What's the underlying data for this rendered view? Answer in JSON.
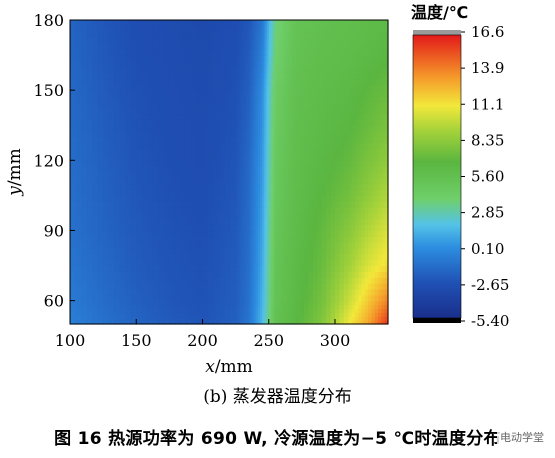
{
  "chart_data": {
    "type": "heatmap",
    "title": "",
    "xlabel_italic": "x",
    "xlabel_unit": "/mm",
    "ylabel_italic": "y",
    "ylabel_unit": "/mm",
    "xlim": [
      100,
      340
    ],
    "ylim": [
      50,
      180
    ],
    "x_ticks": [
      100,
      150,
      200,
      250,
      300
    ],
    "y_ticks": [
      60,
      90,
      120,
      150,
      180
    ],
    "colorbar": {
      "title": "温度/℃",
      "min": -5.4,
      "max": 16.6,
      "ticks": [
        "16.6",
        "13.9",
        "11.1",
        "8.35",
        "5.60",
        "2.85",
        "0.10",
        "-2.65",
        "-5.40"
      ]
    },
    "x": [
      100,
      125,
      150,
      175,
      200,
      225,
      235,
      245,
      255,
      270,
      290,
      310,
      325,
      340
    ],
    "y": [
      50,
      60,
      75,
      90,
      105,
      120,
      135,
      150,
      165,
      180
    ],
    "values": [
      [
        -0.5,
        -1.2,
        -1.8,
        -2.2,
        -2.5,
        -2.0,
        -1.0,
        1.5,
        5.5,
        6.5,
        8.0,
        11.0,
        13.0,
        16.0
      ],
      [
        -0.8,
        -1.4,
        -2.0,
        -2.4,
        -2.6,
        -2.1,
        -1.2,
        1.2,
        5.3,
        6.3,
        7.6,
        10.0,
        12.0,
        14.0
      ],
      [
        -1.0,
        -1.6,
        -2.2,
        -2.5,
        -2.7,
        -2.2,
        -1.3,
        1.0,
        5.2,
        6.2,
        7.2,
        9.0,
        10.5,
        11.5
      ],
      [
        -1.2,
        -1.8,
        -2.3,
        -2.6,
        -2.8,
        -2.3,
        -1.4,
        0.8,
        5.0,
        6.0,
        7.0,
        8.2,
        9.5,
        10.5
      ],
      [
        -1.3,
        -1.9,
        -2.4,
        -2.7,
        -2.9,
        -2.4,
        -1.5,
        0.6,
        4.8,
        5.9,
        6.7,
        7.5,
        8.5,
        9.5
      ],
      [
        -1.4,
        -2.0,
        -2.5,
        -2.8,
        -3.0,
        -2.5,
        -1.6,
        0.4,
        4.7,
        5.8,
        6.4,
        7.0,
        7.8,
        8.5
      ],
      [
        -1.5,
        -2.1,
        -2.6,
        -2.9,
        -3.0,
        -2.6,
        -1.8,
        0.2,
        4.5,
        5.7,
        6.2,
        6.6,
        7.2,
        7.8
      ],
      [
        -1.6,
        -2.2,
        -2.7,
        -2.9,
        -3.1,
        -2.7,
        -2.0,
        0.0,
        4.3,
        5.6,
        6.0,
        6.3,
        6.8,
        7.2
      ],
      [
        -1.7,
        -2.3,
        -2.8,
        -3.0,
        -3.1,
        -2.8,
        -2.2,
        -0.5,
        3.8,
        5.4,
        5.8,
        6.0,
        6.3,
        6.6
      ],
      [
        -1.8,
        -2.4,
        -2.9,
        -3.0,
        -3.2,
        -2.9,
        -2.4,
        -1.0,
        3.5,
        5.2,
        5.6,
        5.8,
        6.0,
        6.2
      ]
    ]
  },
  "subcaption": "(b) 蒸发器温度分布",
  "caption": "图 16  热源功率为 690 W, 冷源温度为−5 ℃时温度分布",
  "watermark": "电动学堂"
}
